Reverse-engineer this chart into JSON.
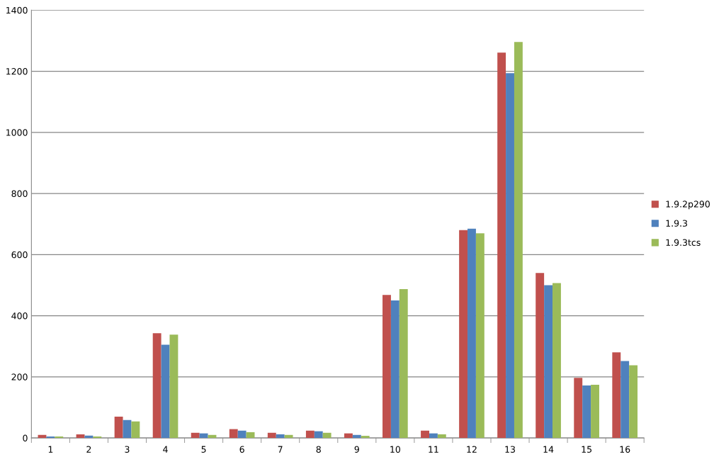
{
  "chart_data": {
    "type": "bar",
    "categories": [
      "1",
      "2",
      "3",
      "4",
      "5",
      "6",
      "7",
      "8",
      "9",
      "10",
      "11",
      "12",
      "13",
      "14",
      "15",
      "16"
    ],
    "series": [
      {
        "name": "1.9.2p290",
        "color": "#c0504d",
        "values": [
          10,
          12,
          70,
          343,
          17,
          29,
          17,
          24,
          15,
          468,
          24,
          680,
          1261,
          540,
          197,
          280
        ]
      },
      {
        "name": "1.9.3",
        "color": "#4f81bd",
        "values": [
          5,
          8,
          59,
          305,
          15,
          24,
          12,
          22,
          10,
          450,
          15,
          685,
          1194,
          500,
          172,
          252
        ]
      },
      {
        "name": "1.9.3tcs",
        "color": "#9bbb59",
        "values": [
          5,
          5,
          54,
          338,
          10,
          19,
          10,
          17,
          7,
          487,
          12,
          670,
          1296,
          507,
          174,
          238
        ]
      }
    ],
    "ylim": [
      0,
      1400
    ],
    "yticks": [
      0,
      200,
      400,
      600,
      800,
      1000,
      1200,
      1400
    ],
    "grid": "y",
    "legend": "right"
  }
}
